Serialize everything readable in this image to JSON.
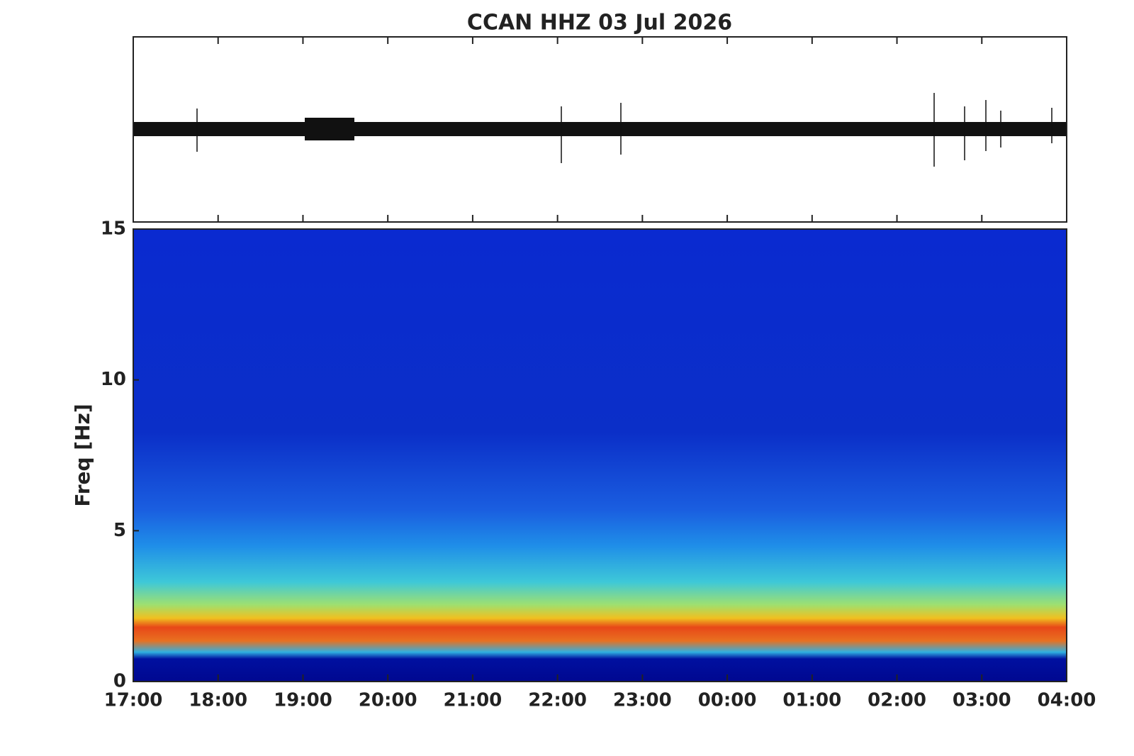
{
  "chart_data": {
    "type": "spectrogram",
    "title": "CCAN HHZ  03 Jul 2026",
    "ylabel": "Freq [Hz]",
    "ylim": [
      0,
      15
    ],
    "yticks": [
      0,
      5,
      10,
      15
    ],
    "xlim": [
      17,
      28
    ],
    "xticks": [
      {
        "value": 17,
        "label": "17:00"
      },
      {
        "value": 18,
        "label": "18:00"
      },
      {
        "value": 19,
        "label": "19:00"
      },
      {
        "value": 20,
        "label": "20:00"
      },
      {
        "value": 21,
        "label": "21:00"
      },
      {
        "value": 22,
        "label": "22:00"
      },
      {
        "value": 23,
        "label": "23:00"
      },
      {
        "value": 24,
        "label": "00:00"
      },
      {
        "value": 25,
        "label": "01:00"
      },
      {
        "value": 26,
        "label": "02:00"
      },
      {
        "value": 27,
        "label": "03:00"
      },
      {
        "value": 28,
        "label": "04:00"
      }
    ]
  }
}
